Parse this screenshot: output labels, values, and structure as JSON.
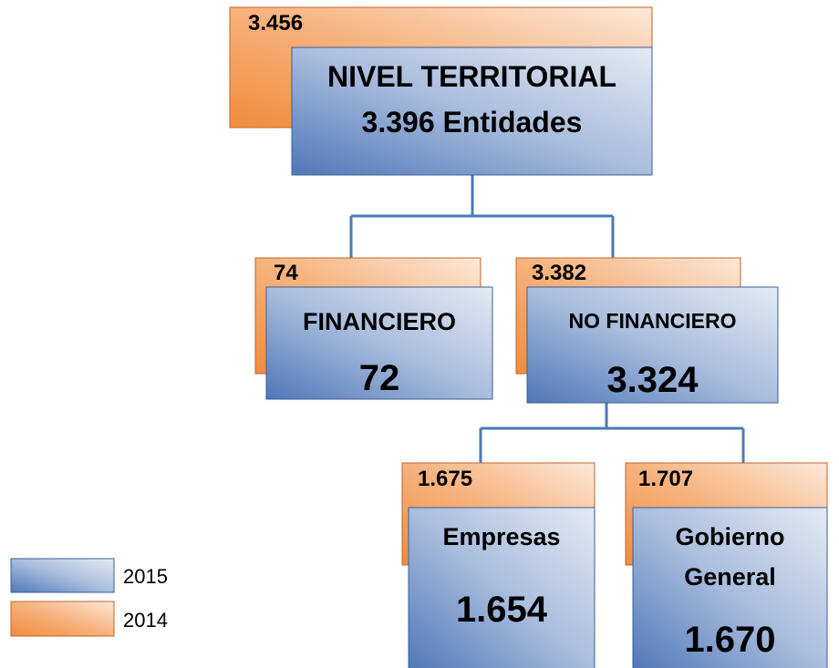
{
  "nodes": [
    {
      "title": [
        "NIVEL TERRITORIAL"
      ],
      "value": "3.396 Entidades",
      "previous": "3.456"
    },
    {
      "title": [
        "FINANCIERO"
      ],
      "value": "72",
      "previous": "74"
    },
    {
      "title": [
        "NO FINANCIERO"
      ],
      "value": "3.324",
      "previous": "3.382"
    },
    {
      "title": [
        "Empresas"
      ],
      "value": "1.654",
      "previous": "1.675"
    },
    {
      "title": [
        "Gobierno",
        "General"
      ],
      "value": "1.670",
      "previous": "1.707"
    }
  ],
  "legend": [
    {
      "label": "2015"
    },
    {
      "label": "2014"
    }
  ]
}
